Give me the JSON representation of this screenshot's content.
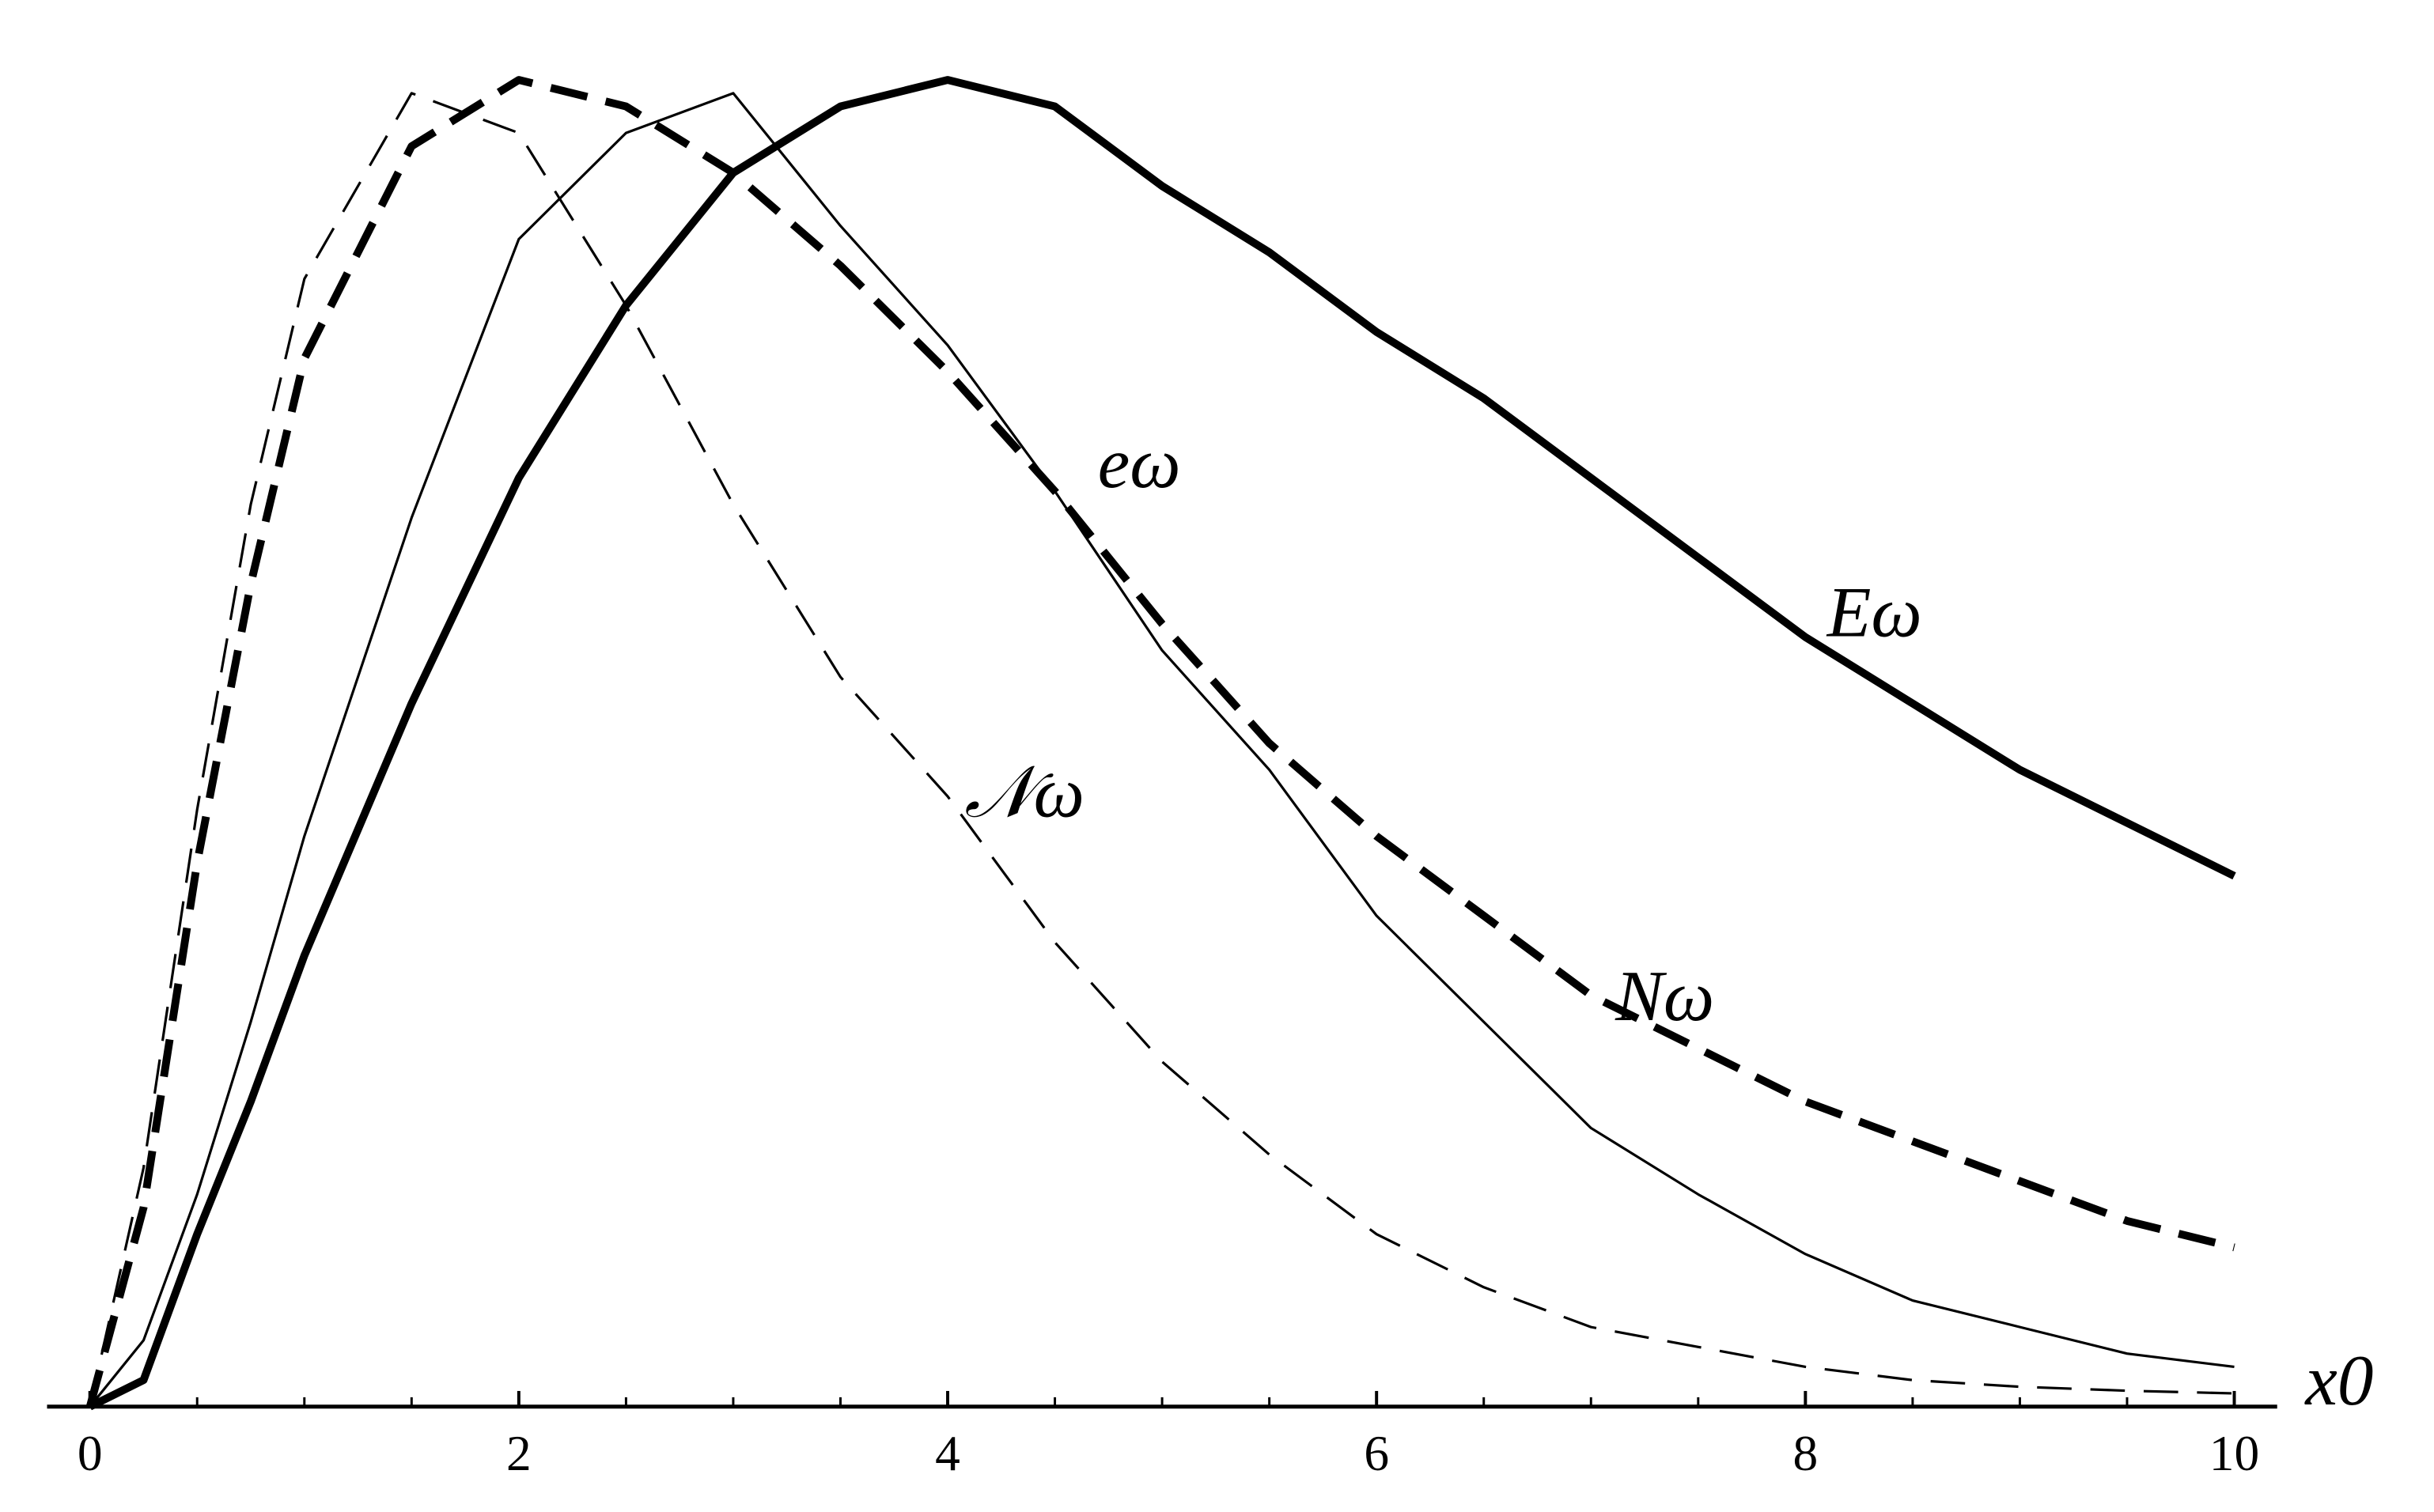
{
  "chart_data": {
    "type": "line",
    "x_label": "x0",
    "x": [
      0,
      0.25,
      0.5,
      0.75,
      1,
      1.5,
      2,
      2.5,
      3,
      3.5,
      4,
      4.5,
      5,
      5.5,
      6,
      6.5,
      7,
      7.5,
      8,
      8.5,
      9,
      9.5,
      10
    ],
    "series": [
      {
        "name": "Eω",
        "color": "#000000",
        "line_style": "solid",
        "weight": "thick",
        "values": [
          0,
          0.02,
          0.13,
          0.23,
          0.34,
          0.53,
          0.7,
          0.83,
          0.93,
          0.98,
          1.0,
          0.98,
          0.92,
          0.87,
          0.81,
          0.76,
          0.7,
          0.64,
          0.58,
          0.53,
          0.48,
          0.44,
          0.4
        ]
      },
      {
        "name": "eω",
        "color": "#000000",
        "line_style": "solid",
        "weight": "thin",
        "values": [
          0,
          0.05,
          0.16,
          0.29,
          0.43,
          0.67,
          0.88,
          0.96,
          0.99,
          0.89,
          0.8,
          0.69,
          0.57,
          0.48,
          0.37,
          0.29,
          0.21,
          0.16,
          0.115,
          0.08,
          0.06,
          0.04,
          0.03
        ]
      },
      {
        "name": "Nω",
        "color": "#000000",
        "line_style": "dashed",
        "weight": "thick",
        "values": [
          0,
          0.15,
          0.41,
          0.62,
          0.79,
          0.95,
          1.0,
          0.98,
          0.93,
          0.86,
          0.78,
          0.69,
          0.59,
          0.5,
          0.43,
          0.37,
          0.31,
          0.27,
          0.23,
          0.2,
          0.17,
          0.14,
          0.12
        ]
      },
      {
        "name": "𝒩ω",
        "color": "#000000",
        "line_style": "dashed",
        "weight": "thin",
        "values": [
          0,
          0.18,
          0.45,
          0.68,
          0.85,
          0.99,
          0.96,
          0.83,
          0.68,
          0.55,
          0.46,
          0.35,
          0.26,
          0.19,
          0.13,
          0.09,
          0.06,
          0.045,
          0.03,
          0.02,
          0.015,
          0.012,
          0.01
        ]
      }
    ],
    "xlim": [
      -0.2,
      10.2
    ],
    "xticks": [
      0,
      2,
      4,
      6,
      8,
      10
    ],
    "xminorticks": [
      0.5,
      1,
      1.5,
      2.5,
      3,
      3.5,
      4.5,
      5,
      5.5,
      6.5,
      7,
      7.5,
      8.5,
      9,
      9.5
    ],
    "ylim": [
      0,
      1.06
    ],
    "grid": false
  }
}
